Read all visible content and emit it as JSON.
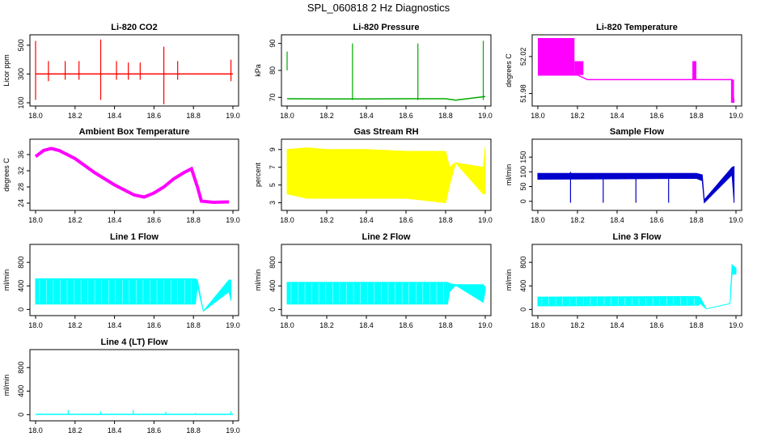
{
  "title": "SPL_060818  2 Hz Diagnostics",
  "chart_data": [
    {
      "id": "co2",
      "type": "line",
      "title": "Li-820 CO2",
      "ylabel": "Licor ppm",
      "color": "#ff0000",
      "xlim": [
        18.0,
        19.0
      ],
      "ylim": [
        100,
        550
      ],
      "x_ticks": [
        "18.0",
        "18.2",
        "18.4",
        "18.6",
        "18.8",
        "19.0"
      ],
      "y_ticks": [
        {
          "v": 100,
          "label": "100"
        },
        {
          "v": 300,
          "label": "300"
        },
        {
          "v": 500,
          "label": "500"
        }
      ],
      "x": [
        18.0,
        18.1,
        18.2,
        18.3,
        18.4,
        18.5,
        18.6,
        18.7,
        18.8,
        18.9,
        19.0
      ],
      "values": [
        300,
        300,
        300,
        300,
        300,
        300,
        300,
        300,
        300,
        300,
        300
      ],
      "spikes": [
        [
          18.0,
          120,
          530
        ],
        [
          18.065,
          250,
          390
        ],
        [
          18.15,
          260,
          390
        ],
        [
          18.22,
          260,
          390
        ],
        [
          18.33,
          120,
          540
        ],
        [
          18.41,
          260,
          390
        ],
        [
          18.47,
          260,
          380
        ],
        [
          18.53,
          260,
          380
        ],
        [
          18.65,
          90,
          490
        ],
        [
          18.72,
          260,
          390
        ],
        [
          18.99,
          250,
          400
        ]
      ]
    },
    {
      "id": "pressure",
      "type": "line",
      "title": "Li-820 Pressure",
      "ylabel": "kPa",
      "color": "#00aa00",
      "xlim": [
        18.0,
        19.0
      ],
      "ylim": [
        68,
        92
      ],
      "x_ticks": [
        "18.0",
        "18.2",
        "18.4",
        "18.6",
        "18.8",
        "19.0"
      ],
      "y_ticks": [
        {
          "v": 70,
          "label": "70"
        },
        {
          "v": 80,
          "label": "80"
        },
        {
          "v": 90,
          "label": "90"
        }
      ],
      "x": [
        18.0,
        18.2,
        18.4,
        18.6,
        18.8,
        18.85,
        18.9,
        19.0
      ],
      "values": [
        69.5,
        69.4,
        69.4,
        69.5,
        69.5,
        69.0,
        69.4,
        70.3
      ],
      "spikes": [
        [
          18.0,
          80,
          87
        ],
        [
          18.33,
          69,
          90
        ],
        [
          18.66,
          69,
          90
        ],
        [
          18.99,
          69,
          91
        ]
      ]
    },
    {
      "id": "licor-temp",
      "type": "line",
      "title": "Li-820 Temperature",
      "ylabel": "degrees C",
      "color": "#ff00ff",
      "xlim": [
        18.0,
        19.0
      ],
      "ylim": [
        51.97,
        52.04
      ],
      "x_ticks": [
        "18.0",
        "18.2",
        "18.4",
        "18.6",
        "18.8",
        "19.0"
      ],
      "y_ticks": [
        {
          "v": 51.98,
          "label": "51.98"
        },
        {
          "v": 52.02,
          "label": "52.02"
        }
      ],
      "x": [
        18.0,
        18.2,
        18.25,
        18.5,
        18.8,
        18.98,
        18.99
      ],
      "values": [
        52.0,
        52.0,
        51.995,
        51.995,
        51.995,
        51.995,
        51.97
      ],
      "blocks": [
        [
          18.0,
          18.185,
          52.0,
          52.04
        ],
        [
          18.185,
          18.23,
          52.0,
          52.015
        ],
        [
          18.78,
          18.8,
          51.995,
          52.015
        ],
        [
          18.975,
          18.99,
          51.97,
          51.995
        ]
      ]
    },
    {
      "id": "box-temp",
      "type": "line",
      "title": "Ambient Box Temperature",
      "ylabel": "degrees C",
      "color": "#ff00ff",
      "xlim": [
        18.0,
        19.0
      ],
      "ylim": [
        23,
        39
      ],
      "x_ticks": [
        "18.0",
        "18.2",
        "18.4",
        "18.6",
        "18.8",
        "19.0"
      ],
      "y_ticks": [
        {
          "v": 24,
          "label": "24"
        },
        {
          "v": 28,
          "label": "28"
        },
        {
          "v": 32,
          "label": "32"
        },
        {
          "v": 36,
          "label": "36"
        }
      ],
      "x": [
        18.0,
        18.04,
        18.08,
        18.12,
        18.2,
        18.3,
        18.4,
        18.5,
        18.55,
        18.6,
        18.65,
        18.7,
        18.75,
        18.79,
        18.82,
        18.84,
        18.9,
        18.98
      ],
      "values": [
        35.5,
        37.0,
        37.5,
        37.0,
        35.0,
        31.5,
        28.5,
        26.0,
        25.5,
        26.5,
        28.0,
        30.0,
        31.5,
        32.5,
        28.0,
        24.5,
        24.2,
        24.3
      ]
    },
    {
      "id": "rh",
      "type": "band",
      "title": "Gas Stream RH",
      "ylabel": "percent",
      "color": "#ffff00",
      "xlim": [
        18.0,
        19.0
      ],
      "ylim": [
        2.5,
        9.8
      ],
      "x_ticks": [
        "18.0",
        "18.2",
        "18.4",
        "18.6",
        "18.8",
        "19.0"
      ],
      "y_ticks": [
        {
          "v": 3,
          "label": "3"
        },
        {
          "v": 5,
          "label": "5"
        },
        {
          "v": 7,
          "label": "7"
        },
        {
          "v": 9,
          "label": "9"
        }
      ],
      "x": [
        18.0,
        18.1,
        18.2,
        18.4,
        18.6,
        18.8,
        18.82,
        18.85,
        18.99,
        19.0
      ],
      "upper": [
        9.0,
        9.2,
        9.0,
        9.0,
        8.8,
        8.8,
        7.0,
        7.5,
        7.0,
        9.3
      ],
      "lower": [
        4.0,
        3.5,
        3.5,
        3.5,
        3.5,
        3.0,
        5.0,
        7.5,
        4.0,
        4.0
      ]
    },
    {
      "id": "sample-flow",
      "type": "band",
      "title": "Sample Flow",
      "ylabel": "ml/min",
      "color": "#0000cc",
      "xlim": [
        18.0,
        19.0
      ],
      "ylim": [
        -20,
        200
      ],
      "x_ticks": [
        "18.0",
        "18.2",
        "18.4",
        "18.6",
        "18.8",
        "19.0"
      ],
      "y_ticks": [
        {
          "v": 0,
          "label": "0"
        },
        {
          "v": 50,
          "label": "50"
        },
        {
          "v": 100,
          "label": "100"
        },
        {
          "v": 150,
          "label": "150"
        }
      ],
      "x": [
        18.0,
        18.8,
        18.83,
        18.84,
        18.98,
        18.99
      ],
      "upper": [
        95,
        95,
        90,
        5,
        115,
        118
      ],
      "lower": [
        75,
        78,
        70,
        -5,
        90,
        5
      ],
      "spikes": [
        [
          18.165,
          -5,
          100
        ],
        [
          18.33,
          -5,
          90
        ],
        [
          18.495,
          -5,
          95
        ],
        [
          18.66,
          -5,
          95
        ],
        [
          18.99,
          -5,
          118
        ]
      ]
    },
    {
      "id": "line1",
      "type": "band",
      "title": "Line 1 Flow",
      "ylabel": "ml/min",
      "color": "#00ffff",
      "xlim": [
        18.0,
        19.0
      ],
      "ylim": [
        -50,
        1050
      ],
      "x_ticks": [
        "18.0",
        "18.2",
        "18.4",
        "18.6",
        "18.8",
        "19.0"
      ],
      "y_ticks": [
        {
          "v": 0,
          "label": "0"
        },
        {
          "v": 400,
          "label": "400"
        },
        {
          "v": 800,
          "label": "800"
        }
      ],
      "x": [
        18.0,
        18.81,
        18.82,
        18.85,
        18.98,
        18.99
      ],
      "upper": [
        520,
        520,
        500,
        -30,
        500,
        500
      ],
      "lower": [
        90,
        90,
        400,
        -30,
        300,
        150
      ]
    },
    {
      "id": "line2",
      "type": "band",
      "title": "Line 2 Flow",
      "ylabel": "ml/min",
      "color": "#00ffff",
      "xlim": [
        18.0,
        19.0
      ],
      "ylim": [
        -50,
        1050
      ],
      "x_ticks": [
        "18.0",
        "18.2",
        "18.4",
        "18.6",
        "18.8",
        "19.0"
      ],
      "y_ticks": [
        {
          "v": 0,
          "label": "0"
        },
        {
          "v": 400,
          "label": "400"
        },
        {
          "v": 800,
          "label": "800"
        }
      ],
      "x": [
        18.0,
        18.81,
        18.82,
        18.85,
        18.99,
        19.0
      ],
      "upper": [
        460,
        460,
        440,
        420,
        420,
        380
      ],
      "lower": [
        90,
        90,
        300,
        410,
        120,
        330
      ]
    },
    {
      "id": "line3",
      "type": "band",
      "title": "Line 3 Flow",
      "ylabel": "ml/min",
      "color": "#00ffff",
      "xlim": [
        18.0,
        19.0
      ],
      "ylim": [
        -50,
        1050
      ],
      "x_ticks": [
        "18.0",
        "18.2",
        "18.4",
        "18.6",
        "18.8",
        "19.0"
      ],
      "y_ticks": [
        {
          "v": 0,
          "label": "0"
        },
        {
          "v": 400,
          "label": "400"
        },
        {
          "v": 800,
          "label": "800"
        }
      ],
      "x": [
        18.0,
        18.81,
        18.82,
        18.85,
        18.97,
        18.98,
        19.0
      ],
      "upper": [
        210,
        220,
        200,
        10,
        100,
        760,
        700
      ],
      "lower": [
        60,
        70,
        100,
        10,
        100,
        600,
        600
      ]
    },
    {
      "id": "line4",
      "type": "line",
      "title": "Line 4 (LT) Flow",
      "ylabel": "ml/min",
      "color": "#00ffff",
      "xlim": [
        18.0,
        19.0
      ],
      "ylim": [
        -50,
        1050
      ],
      "x_ticks": [
        "18.0",
        "18.2",
        "18.4",
        "18.6",
        "18.8",
        "19.0"
      ],
      "y_ticks": [
        {
          "v": 0,
          "label": "0"
        },
        {
          "v": 400,
          "label": "400"
        },
        {
          "v": 800,
          "label": "800"
        }
      ],
      "x": [
        18.0,
        19.0
      ],
      "values": [
        5,
        5
      ],
      "spikes": [
        [
          18.165,
          5,
          80
        ],
        [
          18.33,
          5,
          50
        ],
        [
          18.495,
          5,
          80
        ],
        [
          18.66,
          5,
          50
        ],
        [
          18.81,
          5,
          30
        ],
        [
          18.99,
          5,
          60
        ]
      ]
    }
  ]
}
